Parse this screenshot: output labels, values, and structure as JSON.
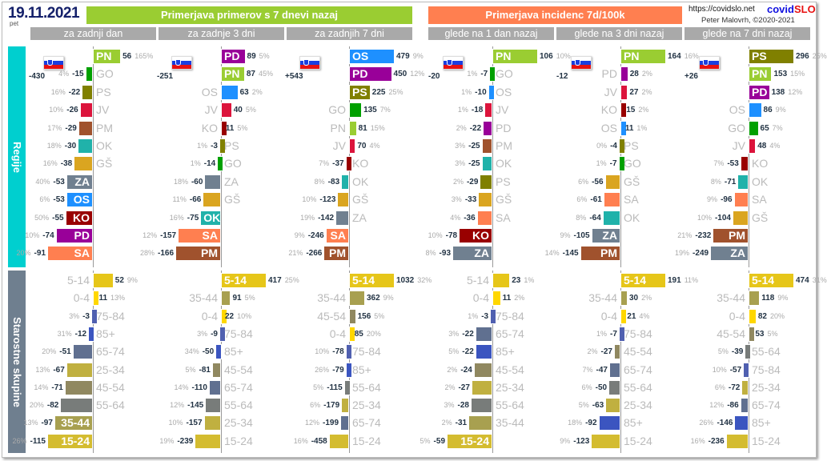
{
  "header": {
    "date": "19.11.2021",
    "day": "pet",
    "title_cases": "Primerjava primerov s 7 dnevi nazaj",
    "title_incidence": "Primerjava incidenc 7d/100k",
    "url": "https://covidslo.net",
    "logo_a": "covid",
    "logo_b": "SLO",
    "author": "Peter Malovrh, ©2020-2021",
    "subtitles": [
      "za zadnji dan",
      "za zadnje 3 dni",
      "za zadnjih 7 dni",
      "glede na 1 dan nazaj",
      "glede na 3 dni nazaj",
      "glede na 7 dni nazaj"
    ]
  },
  "sections": {
    "regions": "Regije",
    "ages": "Starostne skupine"
  },
  "colors": {
    "PN": "#9acd32",
    "GO": "#00a000",
    "PS": "#808000",
    "JV": "#dc143c",
    "PM": "#a0522d",
    "OK": "#20b2aa",
    "GŠ": "#daa520",
    "ZA": "#708090",
    "OS": "#1e90ff",
    "KO": "#990000",
    "PD": "#990099",
    "SA": "#ff7f50",
    "5-14": "#e6c619",
    "0-4": "#ffd700",
    "75-84": "#5060b0",
    "85+": "#3b55c0",
    "65-74": "#607090",
    "25-34": "#c0b040",
    "45-54": "#908860",
    "55-64": "#787c7a",
    "35-44": "#a8a050",
    "15-24": "#d4bc30"
  },
  "chart_data": [
    {
      "type": "bar",
      "panel": "za zadnji dan",
      "total": "-430",
      "regions": [
        [
          "PN",
          56,
          "165%"
        ],
        [
          "GO",
          -15,
          "4%"
        ],
        [
          "PS",
          -22,
          "16%"
        ],
        [
          "JV",
          -26,
          "10%"
        ],
        [
          "PM",
          -29,
          "17%"
        ],
        [
          "OK",
          -30,
          "18%"
        ],
        [
          "GŠ",
          -38,
          "16%"
        ],
        [
          "ZA",
          -53,
          "40%"
        ],
        [
          "OS",
          -53,
          "6%"
        ],
        [
          "KO",
          -55,
          "50%"
        ],
        [
          "PD",
          -74,
          "10%"
        ],
        [
          "SA",
          -91,
          "20%"
        ]
      ],
      "ages": [
        [
          "5-14",
          52,
          "9%"
        ],
        [
          "0-4",
          11,
          "13%"
        ],
        [
          "75-84",
          -3,
          "3%"
        ],
        [
          "85+",
          -12,
          "31%"
        ],
        [
          "65-74",
          -51,
          "20%"
        ],
        [
          "25-34",
          -67,
          "13%"
        ],
        [
          "45-54",
          -71,
          "14%"
        ],
        [
          "55-64",
          -82,
          "20%"
        ],
        [
          "35-44",
          -97,
          "13%"
        ],
        [
          "15-24",
          -115,
          "26%"
        ]
      ]
    },
    {
      "type": "bar",
      "panel": "za zadnje 3 dni",
      "total": "-251",
      "regions": [
        [
          "PD",
          89,
          "5%"
        ],
        [
          "PN",
          87,
          "45%"
        ],
        [
          "OS",
          63,
          "2%"
        ],
        [
          "JV",
          40,
          "5%"
        ],
        [
          "KO",
          11,
          "5%"
        ],
        [
          "PS",
          -3,
          "1%"
        ],
        [
          "GO",
          -14,
          "1%"
        ],
        [
          "ZA",
          -60,
          "18%"
        ],
        [
          "GŠ",
          -66,
          "11%"
        ],
        [
          "OK",
          -75,
          "16%"
        ],
        [
          "SA",
          -157,
          "12%"
        ],
        [
          "PM",
          -166,
          "28%"
        ]
      ],
      "ages": [
        [
          "5-14",
          417,
          "25%"
        ],
        [
          "35-44",
          91,
          "5%"
        ],
        [
          "0-4",
          22,
          "10%"
        ],
        [
          "75-84",
          -9,
          "3%"
        ],
        [
          "85+",
          -50,
          "34%"
        ],
        [
          "45-54",
          -81,
          "5%"
        ],
        [
          "65-74",
          -110,
          "14%"
        ],
        [
          "55-64",
          -145,
          "12%"
        ],
        [
          "25-34",
          -157,
          "10%"
        ],
        [
          "15-24",
          -239,
          "19%"
        ]
      ]
    },
    {
      "type": "bar",
      "panel": "za zadnjih 7 dni",
      "total": "+543",
      "regions": [
        [
          "OS",
          479,
          "9%"
        ],
        [
          "PD",
          450,
          "12%"
        ],
        [
          "PS",
          225,
          "25%"
        ],
        [
          "GO",
          135,
          "7%"
        ],
        [
          "PN",
          81,
          "15%"
        ],
        [
          "JV",
          70,
          "4%"
        ],
        [
          "KO",
          -37,
          "7%"
        ],
        [
          "OK",
          -83,
          "8%"
        ],
        [
          "GŠ",
          -123,
          "10%"
        ],
        [
          "ZA",
          -142,
          "19%"
        ],
        [
          "SA",
          -246,
          "9%"
        ],
        [
          "PM",
          -266,
          "21%"
        ]
      ],
      "ages": [
        [
          "5-14",
          1032,
          "32%"
        ],
        [
          "35-44",
          362,
          "9%"
        ],
        [
          "45-54",
          156,
          "5%"
        ],
        [
          "0-4",
          85,
          "20%"
        ],
        [
          "75-84",
          -78,
          "10%"
        ],
        [
          "85+",
          -79,
          "26%"
        ],
        [
          "55-64",
          -115,
          "5%"
        ],
        [
          "25-34",
          -179,
          "6%"
        ],
        [
          "65-74",
          -199,
          "12%"
        ],
        [
          "15-24",
          -458,
          "16%"
        ]
      ]
    },
    {
      "type": "bar",
      "panel": "glede na 1 dan nazaj",
      "total": "-20",
      "regions": [
        [
          "PN",
          106,
          "10%"
        ],
        [
          "GO",
          -7,
          "1%"
        ],
        [
          "OS",
          -10,
          "1%"
        ],
        [
          "JV",
          -18,
          "1%"
        ],
        [
          "PD",
          -22,
          "2%"
        ],
        [
          "PM",
          -25,
          "3%"
        ],
        [
          "OK",
          -25,
          "3%"
        ],
        [
          "PS",
          -29,
          "2%"
        ],
        [
          "GŠ",
          -33,
          "3%"
        ],
        [
          "SA",
          -36,
          "4%"
        ],
        [
          "KO",
          -78,
          "10%"
        ],
        [
          "ZA",
          -93,
          "8%"
        ]
      ],
      "ages": [
        [
          "5-14",
          23,
          "1%"
        ],
        [
          "0-4",
          11,
          "2%"
        ],
        [
          "75-84",
          -3,
          "1%"
        ],
        [
          "65-74",
          -22,
          "3%"
        ],
        [
          "85+",
          -22,
          "5%"
        ],
        [
          "45-54",
          -24,
          "2%"
        ],
        [
          "25-34",
          -27,
          "2%"
        ],
        [
          "55-64",
          -28,
          "3%"
        ],
        [
          "35-44",
          -31,
          "2%"
        ],
        [
          "15-24",
          -59,
          "5%"
        ]
      ]
    },
    {
      "type": "bar",
      "panel": "glede na 3 dni nazaj",
      "total": "-12",
      "regions": [
        [
          "PN",
          164,
          "16%"
        ],
        [
          "PD",
          28,
          "2%"
        ],
        [
          "JV",
          27,
          "2%"
        ],
        [
          "KO",
          15,
          "2%"
        ],
        [
          "OS",
          11,
          "1%"
        ],
        [
          "PS",
          -4,
          "0%"
        ],
        [
          "GO",
          -7,
          "1%"
        ],
        [
          "GŠ",
          -56,
          "6%"
        ],
        [
          "SA",
          -61,
          "6%"
        ],
        [
          "OK",
          -64,
          "8%"
        ],
        [
          "ZA",
          -105,
          "9%"
        ],
        [
          "PM",
          -145,
          "14%"
        ]
      ],
      "ages": [
        [
          "5-14",
          191,
          "11%"
        ],
        [
          "35-44",
          30,
          "2%"
        ],
        [
          "0-4",
          21,
          "4%"
        ],
        [
          "75-84",
          -7,
          "1%"
        ],
        [
          "45-54",
          -27,
          "2%"
        ],
        [
          "65-74",
          -47,
          "7%"
        ],
        [
          "55-64",
          -50,
          "6%"
        ],
        [
          "25-34",
          -63,
          "5%"
        ],
        [
          "85+",
          -92,
          "18%"
        ],
        [
          "15-24",
          -123,
          "9%"
        ]
      ]
    },
    {
      "type": "bar",
      "panel": "glede na 7 dni nazaj",
      "total": "+26",
      "regions": [
        [
          "PS",
          296,
          "25%"
        ],
        [
          "PN",
          153,
          "15%"
        ],
        [
          "PD",
          138,
          "12%"
        ],
        [
          "OS",
          86,
          "9%"
        ],
        [
          "GO",
          65,
          "7%"
        ],
        [
          "JV",
          48,
          "4%"
        ],
        [
          "KO",
          -53,
          "7%"
        ],
        [
          "OK",
          -71,
          "8%"
        ],
        [
          "SA",
          -96,
          "9%"
        ],
        [
          "GŠ",
          -104,
          "10%"
        ],
        [
          "PM",
          -232,
          "21%"
        ],
        [
          "ZA",
          -249,
          "19%"
        ]
      ],
      "ages": [
        [
          "5-14",
          474,
          "31%"
        ],
        [
          "35-44",
          118,
          "9%"
        ],
        [
          "0-4",
          82,
          "20%"
        ],
        [
          "45-54",
          53,
          "5%"
        ],
        [
          "55-64",
          -39,
          "5%"
        ],
        [
          "75-84",
          -57,
          "10%"
        ],
        [
          "25-34",
          -72,
          "6%"
        ],
        [
          "65-74",
          -86,
          "12%"
        ],
        [
          "85+",
          -146,
          "26%"
        ],
        [
          "15-24",
          -236,
          "16%"
        ]
      ]
    }
  ]
}
